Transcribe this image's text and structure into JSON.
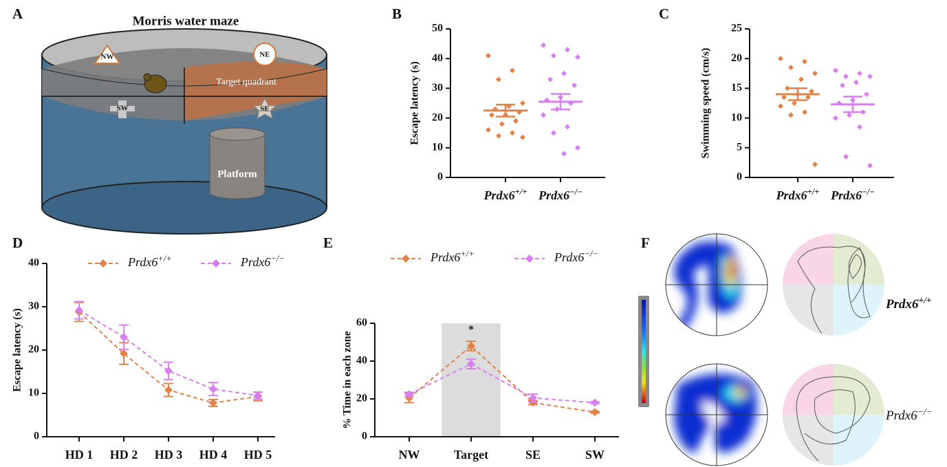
{
  "panels": {
    "A": {
      "label": "A",
      "title": "Morris water maze",
      "NW": "NW",
      "NE": "NE",
      "target": "Target quadrant",
      "SW": "SW",
      "SE": "SE",
      "platform": "Platform"
    },
    "F": {
      "label": "F",
      "labels": [
        "Prdx6+/+",
        "Prdx6−/−"
      ]
    }
  },
  "chart_data": [
    {
      "type": "dot",
      "panel": "B",
      "y_label": "Escape latency (s)",
      "categories": [
        "Prdx6+/+",
        "Prdx6−/−"
      ],
      "ylim": [
        0,
        50
      ],
      "yticks": [
        0,
        10,
        20,
        30,
        40,
        50
      ],
      "groups": [
        {
          "color": "#e0834a",
          "values": [
            41,
            36,
            33,
            25,
            24,
            23,
            22,
            21,
            21,
            19,
            18,
            16,
            15,
            14,
            13.5
          ],
          "mean": 22.5,
          "sem": 2
        },
        {
          "color": "#d77fee",
          "values": [
            44.5,
            43,
            41,
            40.5,
            35,
            33,
            31,
            27,
            26,
            25,
            23,
            21,
            17,
            15,
            10,
            8
          ],
          "mean": 25.5,
          "sem": 2.6
        }
      ]
    },
    {
      "type": "dot",
      "panel": "C",
      "y_label": "Swimming speed (cm/s)",
      "categories": [
        "Prdx6+/+",
        "Prdx6−/−"
      ],
      "ylim": [
        0,
        25
      ],
      "yticks": [
        0,
        5,
        10,
        15,
        20,
        25
      ],
      "groups": [
        {
          "color": "#e0834a",
          "values": [
            20,
            19.5,
            18.5,
            17.5,
            16.5,
            15,
            14.5,
            14,
            13.5,
            13.5,
            12.5,
            12,
            11,
            10.5,
            2.2
          ],
          "mean": 14,
          "sem": 1
        },
        {
          "color": "#d77fee",
          "values": [
            18,
            17.5,
            17,
            17,
            16,
            15.5,
            14,
            13,
            12.5,
            11,
            10.5,
            10,
            8.5,
            3.5,
            2
          ],
          "mean": 12.3,
          "sem": 1.3
        }
      ]
    },
    {
      "type": "line",
      "panel": "D",
      "y_label": "Escape latency (s)",
      "categories": [
        "HD 1",
        "HD 2",
        "HD 3",
        "HD 4",
        "HD 5"
      ],
      "ylim": [
        0,
        40
      ],
      "yticks": [
        0,
        10,
        20,
        30,
        40
      ],
      "series": [
        {
          "name": "Prdx6+/+",
          "color": "#e0834a",
          "values": [
            28.8,
            19.2,
            10.8,
            7.8,
            9.3
          ],
          "errors": [
            2.2,
            2.5,
            1.5,
            0.8,
            1.0
          ]
        },
        {
          "name": "Prdx6−/−",
          "color": "#d77fee",
          "values": [
            29.2,
            23,
            15.2,
            11,
            9.5
          ],
          "errors": [
            2,
            2.8,
            2,
            1.5,
            0.8
          ]
        }
      ]
    },
    {
      "type": "line",
      "panel": "E",
      "y_label": "% Time in each zone",
      "categories": [
        "NW",
        "Target",
        "SE",
        "SW"
      ],
      "ylim": [
        0,
        60
      ],
      "yticks": [
        0,
        20,
        40,
        60
      ],
      "highlight": "Target",
      "annotations": [
        {
          "text": "*",
          "category": "Target"
        }
      ],
      "series": [
        {
          "name": "Prdx6+/+",
          "color": "#e0834a",
          "values": [
            20.5,
            48,
            18,
            13
          ],
          "errors": [
            2.5,
            2.5,
            1,
            0.5
          ]
        },
        {
          "name": "Prdx6−/−",
          "color": "#d77fee",
          "values": [
            22.5,
            38.5,
            20.5,
            18
          ],
          "errors": [
            1,
            2.5,
            2,
            0.5
          ]
        }
      ]
    }
  ]
}
